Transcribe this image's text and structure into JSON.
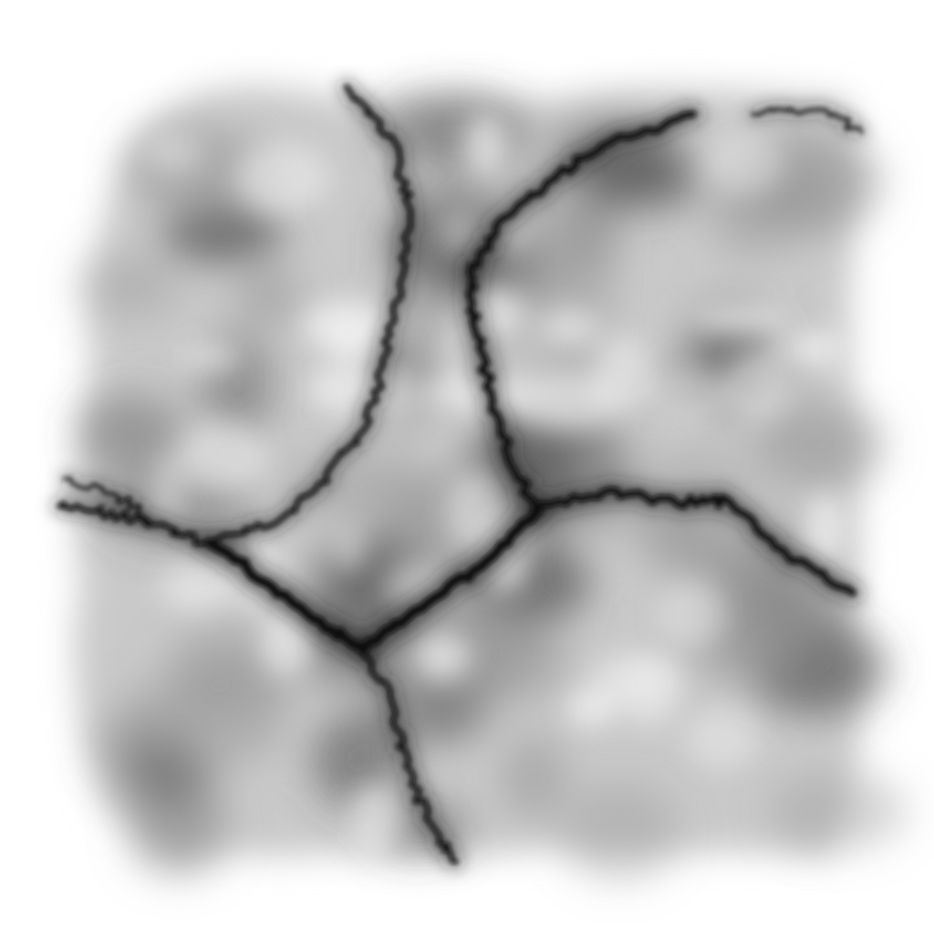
{
  "image": {
    "kind": "grayscale heightmap / noise texture with dark branching cracks",
    "colors": {
      "background": "#ffffff",
      "noise_dark": "#4a4a4a",
      "noise_mid": "#9a9a9a",
      "crack": "#0a0a0a"
    }
  }
}
